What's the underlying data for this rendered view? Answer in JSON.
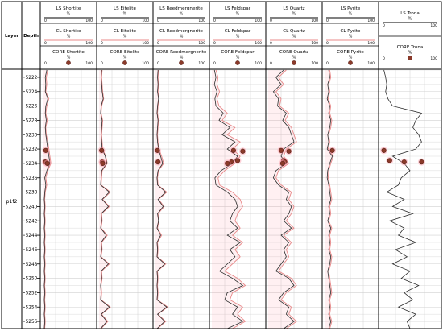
{
  "columns": {
    "layer": "Layer",
    "depth": "Depth"
  },
  "formation": "p1f2",
  "tracks": [
    {
      "ls": "LS Shortite",
      "cl": "CL Shortite",
      "core": "CORE Shortite"
    },
    {
      "ls": "LS Eitelite",
      "cl": "CL Eitelite",
      "core": "CORE Eitelite"
    },
    {
      "ls": "LS Reedmergnerite",
      "cl": "CL Reedmergnerite",
      "core": "CORE Reedmergnerite"
    },
    {
      "ls": "LS Feldspar",
      "cl": "CL Feldspar",
      "core": "CORE Feldspar"
    },
    {
      "ls": "LS Quartz",
      "cl": "CL Quartz",
      "core": "CORE Quartz"
    },
    {
      "ls": "LS Pyrite",
      "cl": "CL Pyrite",
      "core": "CORE Pyrite"
    }
  ],
  "trona_track": {
    "ls": "LS Trona",
    "core": "CORE Trona"
  },
  "unit": "%",
  "scale_min": "0",
  "scale_max": "100",
  "colors": {
    "ls_line": "#2b2b2b",
    "cl_line": "#e88a8a",
    "core_fill": "#8b3a2a",
    "core_glow": "#ff9aa8",
    "grid": "#d0d0d0",
    "border": "#000000"
  },
  "chart_data": {
    "type": "line",
    "y_axis": "depth",
    "ylim": [
      5221,
      5257
    ],
    "depth_ticks": [
      5222,
      5224,
      5226,
      5228,
      5230,
      5232,
      5234,
      5236,
      5238,
      5240,
      5242,
      5244,
      5246,
      5248,
      5250,
      5252,
      5254,
      5256
    ],
    "xlim": [
      0,
      100
    ],
    "depth_samples": [
      5221,
      5222,
      5223,
      5224,
      5225,
      5226,
      5227,
      5228,
      5229,
      5230,
      5231,
      5232,
      5233,
      5234,
      5235,
      5236,
      5237,
      5238,
      5239,
      5240,
      5241,
      5242,
      5243,
      5244,
      5245,
      5246,
      5247,
      5248,
      5249,
      5250,
      5251,
      5252,
      5253,
      5254,
      5255,
      5256,
      5257
    ],
    "tracks": [
      {
        "name": "Shortite",
        "ls": [
          8,
          5,
          6,
          5,
          10,
          6,
          5,
          7,
          5,
          6,
          8,
          10,
          12,
          14,
          8,
          4,
          6,
          4,
          3,
          4,
          3,
          4,
          3,
          4,
          3,
          4,
          3,
          4,
          3,
          4,
          3,
          4,
          3,
          4,
          3,
          4,
          3
        ],
        "cl": [
          10,
          7,
          8,
          6,
          12,
          8,
          6,
          9,
          6,
          7,
          10,
          12,
          14,
          16,
          10,
          6,
          8,
          5,
          4,
          5,
          4,
          5,
          4,
          5,
          4,
          5,
          4,
          5,
          4,
          5,
          4,
          5,
          4,
          5,
          4,
          5,
          4
        ],
        "core": [
          [
            5232.2,
            6
          ],
          [
            5233.8,
            5
          ],
          [
            5234.0,
            9
          ]
        ]
      },
      {
        "name": "Eitelite",
        "ls": [
          5,
          4,
          5,
          6,
          8,
          4,
          3,
          6,
          5,
          4,
          5,
          6,
          12,
          15,
          5,
          4,
          3,
          20,
          6,
          18,
          4,
          5,
          3,
          14,
          4,
          5,
          3,
          18,
          4,
          5,
          3,
          4,
          3,
          20,
          4,
          15,
          3
        ],
        "cl": [
          6,
          5,
          6,
          7,
          9,
          5,
          4,
          7,
          6,
          5,
          6,
          7,
          13,
          16,
          6,
          5,
          4,
          22,
          7,
          20,
          5,
          6,
          4,
          16,
          5,
          6,
          4,
          20,
          5,
          6,
          4,
          5,
          4,
          22,
          5,
          17,
          4
        ],
        "core": [
          [
            5232.2,
            5
          ],
          [
            5233.8,
            6
          ],
          [
            5234.0,
            7
          ]
        ]
      },
      {
        "name": "Reedmergnerite",
        "ls": [
          5,
          4,
          5,
          4,
          6,
          4,
          3,
          5,
          4,
          3,
          4,
          6,
          10,
          14,
          5,
          3,
          4,
          20,
          5,
          15,
          4,
          6,
          3,
          10,
          3,
          4,
          3,
          18,
          3,
          4,
          3,
          4,
          3,
          22,
          4,
          18,
          3
        ],
        "cl": [
          6,
          5,
          6,
          5,
          7,
          5,
          4,
          6,
          5,
          4,
          5,
          7,
          12,
          16,
          6,
          4,
          5,
          22,
          6,
          17,
          5,
          7,
          4,
          12,
          4,
          5,
          4,
          20,
          4,
          5,
          4,
          5,
          4,
          24,
          5,
          20,
          4
        ],
        "core": [
          [
            5232.2,
            4
          ],
          [
            5233.8,
            5
          ]
        ]
      },
      {
        "name": "Feldspar",
        "ls": [
          5,
          8,
          5,
          10,
          6,
          8,
          22,
          14,
          35,
          20,
          45,
          30,
          50,
          40,
          18,
          6,
          8,
          30,
          45,
          50,
          40,
          35,
          50,
          30,
          55,
          35,
          45,
          30,
          15,
          40,
          60,
          30,
          25,
          50,
          40,
          60,
          30
        ],
        "cl": [
          8,
          12,
          10,
          15,
          10,
          14,
          30,
          20,
          45,
          30,
          55,
          40,
          55,
          45,
          25,
          12,
          15,
          40,
          55,
          60,
          50,
          45,
          55,
          40,
          60,
          45,
          55,
          40,
          25,
          50,
          65,
          40,
          35,
          60,
          50,
          65,
          40
        ],
        "core": [
          [
            5232.2,
            42
          ],
          [
            5232.3,
            60
          ],
          [
            5233.6,
            50
          ],
          [
            5233.8,
            38
          ],
          [
            5234.0,
            30
          ]
        ]
      },
      {
        "name": "Quartz",
        "ls": [
          30,
          15,
          25,
          10,
          20,
          18,
          35,
          28,
          40,
          45,
          50,
          30,
          25,
          35,
          15,
          10,
          20,
          40,
          35,
          45,
          40,
          30,
          45,
          25,
          40,
          30,
          35,
          25,
          15,
          40,
          50,
          30,
          20,
          40,
          35,
          50,
          30
        ],
        "cl": [
          35,
          20,
          30,
          15,
          25,
          22,
          40,
          33,
          45,
          50,
          55,
          35,
          30,
          40,
          20,
          15,
          25,
          45,
          40,
          50,
          45,
          35,
          50,
          30,
          45,
          35,
          40,
          30,
          20,
          45,
          55,
          35,
          25,
          45,
          40,
          55,
          35
        ],
        "core": [
          [
            5232.2,
            25
          ],
          [
            5232.3,
            40
          ],
          [
            5233.6,
            30
          ],
          [
            5233.8,
            32
          ],
          [
            5234.0,
            28
          ]
        ]
      },
      {
        "name": "Pyrite",
        "ls": [
          8,
          10,
          6,
          8,
          5,
          10,
          8,
          12,
          10,
          6,
          8,
          5,
          15,
          10,
          6,
          5,
          8,
          10,
          12,
          8,
          10,
          6,
          12,
          8,
          10,
          8,
          12,
          10,
          6,
          8,
          10,
          12,
          8,
          10,
          8,
          12,
          8
        ],
        "cl": [
          10,
          12,
          8,
          10,
          7,
          12,
          10,
          14,
          12,
          8,
          10,
          7,
          17,
          12,
          8,
          7,
          10,
          12,
          14,
          10,
          12,
          8,
          14,
          10,
          12,
          10,
          14,
          12,
          8,
          10,
          12,
          14,
          10,
          12,
          10,
          14,
          10
        ],
        "core": [
          [
            5232.2,
            15
          ]
        ]
      },
      {
        "name": "Trona",
        "ls": [
          5,
          8,
          10,
          8,
          12,
          20,
          70,
          60,
          55,
          65,
          70,
          60,
          20,
          40,
          50,
          35,
          30,
          10,
          40,
          20,
          55,
          15,
          40,
          30,
          60,
          25,
          45,
          20,
          50,
          35,
          65,
          40,
          55,
          30,
          60,
          45,
          50
        ],
        "core": [
          [
            5232.2,
            5
          ],
          [
            5233.6,
            15
          ],
          [
            5233.8,
            40
          ],
          [
            5233.8,
            70
          ]
        ]
      }
    ]
  }
}
